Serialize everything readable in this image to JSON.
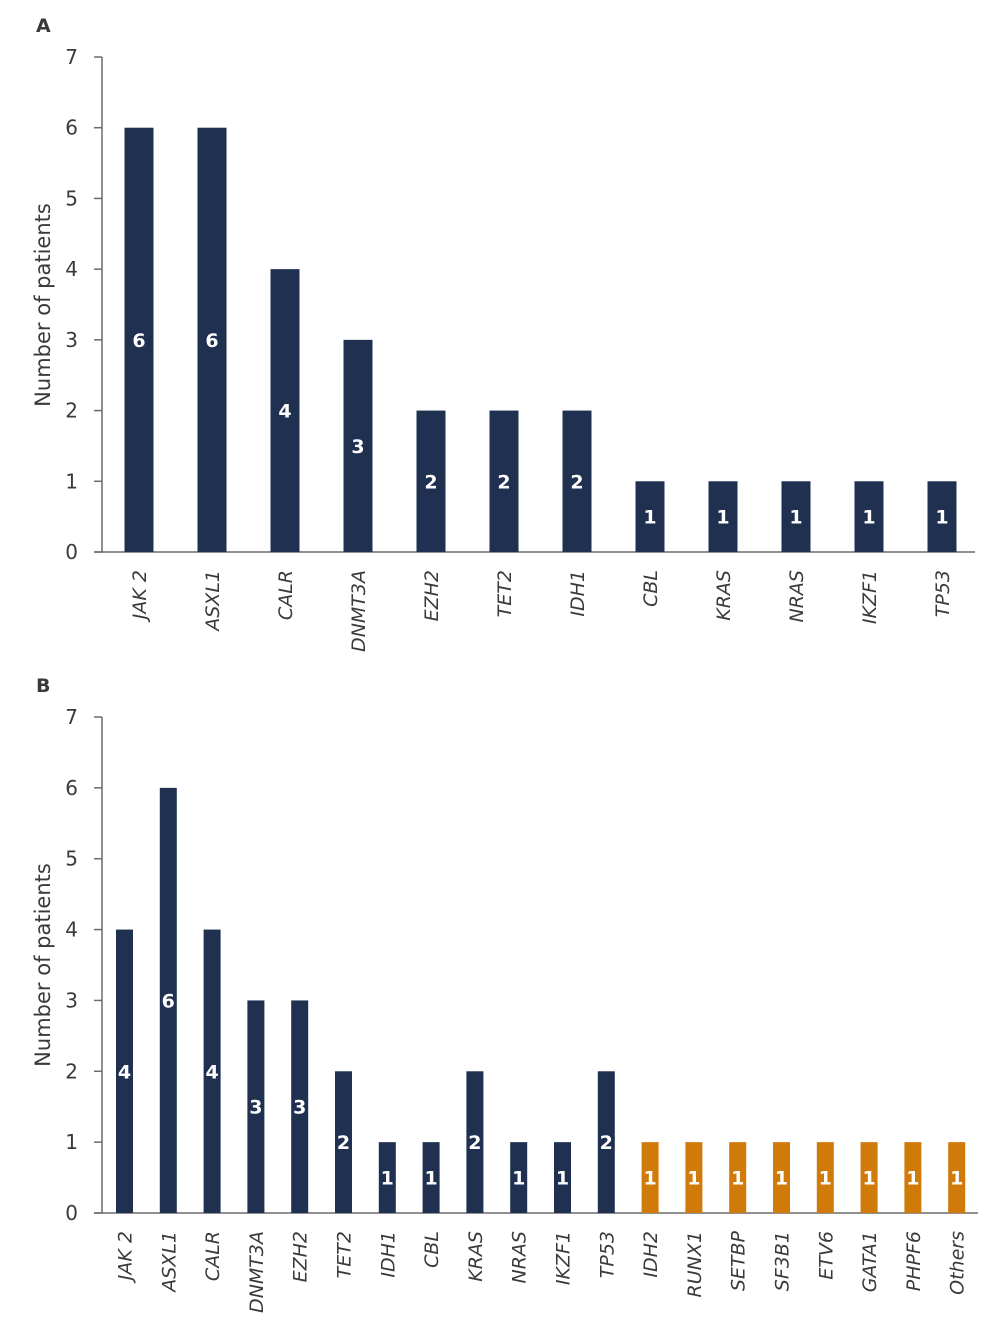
{
  "chart_data": [
    {
      "panel": "A",
      "type": "bar",
      "title": "",
      "xlabel": "",
      "ylabel": "Number of patients",
      "ylim": [
        0,
        7
      ],
      "yticks": [
        0,
        1,
        2,
        3,
        4,
        5,
        6,
        7
      ],
      "grid": false,
      "legend": null,
      "categories": [
        "JAK 2",
        "ASXL1",
        "CALR",
        "DNMT3A",
        "EZH2",
        "TET2",
        "IDH1",
        "CBL",
        "KRAS",
        "NRAS",
        "IKZF1",
        "TP53"
      ],
      "values": [
        6,
        6,
        4,
        3,
        2,
        2,
        2,
        1,
        1,
        1,
        1,
        1
      ],
      "colors": [
        "#1f3050",
        "#1f3050",
        "#1f3050",
        "#1f3050",
        "#1f3050",
        "#1f3050",
        "#1f3050",
        "#1f3050",
        "#1f3050",
        "#1f3050",
        "#1f3050",
        "#1f3050"
      ]
    },
    {
      "panel": "B",
      "type": "bar",
      "title": "",
      "xlabel": "",
      "ylabel": "Number of patients",
      "ylim": [
        0,
        7
      ],
      "yticks": [
        0,
        1,
        2,
        3,
        4,
        5,
        6,
        7
      ],
      "grid": false,
      "legend": null,
      "categories": [
        "JAK 2",
        "ASXL1",
        "CALR",
        "DNMT3A",
        "EZH2",
        "TET2",
        "IDH1",
        "CBL",
        "KRAS",
        "NRAS",
        "IKZF1",
        "TP53",
        "IDH2",
        "RUNX1",
        "SETBP",
        "SF3B1",
        "ETV6",
        "GATA1",
        "PHPF6",
        "Others"
      ],
      "values": [
        4,
        6,
        4,
        3,
        3,
        2,
        1,
        1,
        2,
        1,
        1,
        2,
        1,
        1,
        1,
        1,
        1,
        1,
        1,
        1
      ],
      "colors": [
        "#1f3050",
        "#1f3050",
        "#1f3050",
        "#1f3050",
        "#1f3050",
        "#1f3050",
        "#1f3050",
        "#1f3050",
        "#1f3050",
        "#1f3050",
        "#1f3050",
        "#1f3050",
        "#d07a0a",
        "#d07a0a",
        "#d07a0a",
        "#d07a0a",
        "#d07a0a",
        "#d07a0a",
        "#d07a0a",
        "#d07a0a"
      ]
    }
  ],
  "theme": {
    "navy": "#1f3050",
    "orange": "#d07a0a",
    "axis": "#6b6b6b",
    "text": "#3a3a3a"
  }
}
